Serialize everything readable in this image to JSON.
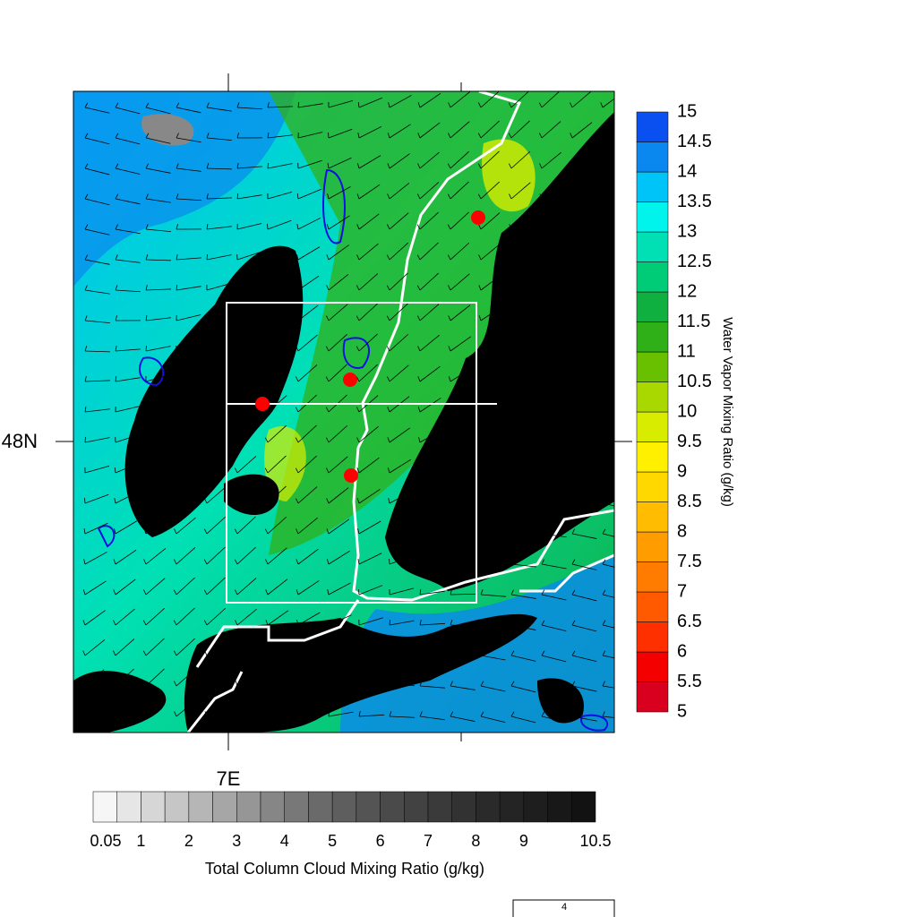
{
  "map": {
    "lat_label": "48N",
    "lon_label": "7E",
    "vector_reference": "4"
  },
  "colorbar_right": {
    "title": "Water Vapor Mixing Ratio (g/kg)",
    "labels": [
      5,
      5.5,
      6,
      6.5,
      7,
      7.5,
      8,
      8.5,
      9,
      9.5,
      10,
      10.5,
      11,
      11.5,
      12,
      12.5,
      13,
      13.5,
      14,
      14.5,
      15
    ],
    "colors": [
      "#d8001e",
      "#f50000",
      "#ff3000",
      "#ff5a00",
      "#ff7c00",
      "#ff9c00",
      "#ffbc00",
      "#ffd800",
      "#fff000",
      "#d8ec00",
      "#a8d800",
      "#68c000",
      "#30b018",
      "#10b040",
      "#00cc78",
      "#00e0b4",
      "#00f4ec",
      "#00c4f8",
      "#0a88f0",
      "#0a50f0"
    ]
  },
  "colorbar_bottom": {
    "title": "Total Column Cloud Mixing Ratio (g/kg)",
    "labels": [
      0.05,
      1,
      2,
      3,
      4,
      5,
      6,
      7,
      8,
      9,
      10.5
    ],
    "colors": [
      "#f6f6f6",
      "#e6e6e6",
      "#d6d6d6",
      "#c6c6c6",
      "#b6b6b6",
      "#a6a6a6",
      "#969696",
      "#868686",
      "#787878",
      "#6a6a6a",
      "#5e5e5e",
      "#545454",
      "#4a4a4a",
      "#424242",
      "#3a3a3a",
      "#323232",
      "#2a2a2a",
      "#242424",
      "#1e1e1e",
      "#181818",
      "#121212"
    ]
  }
}
